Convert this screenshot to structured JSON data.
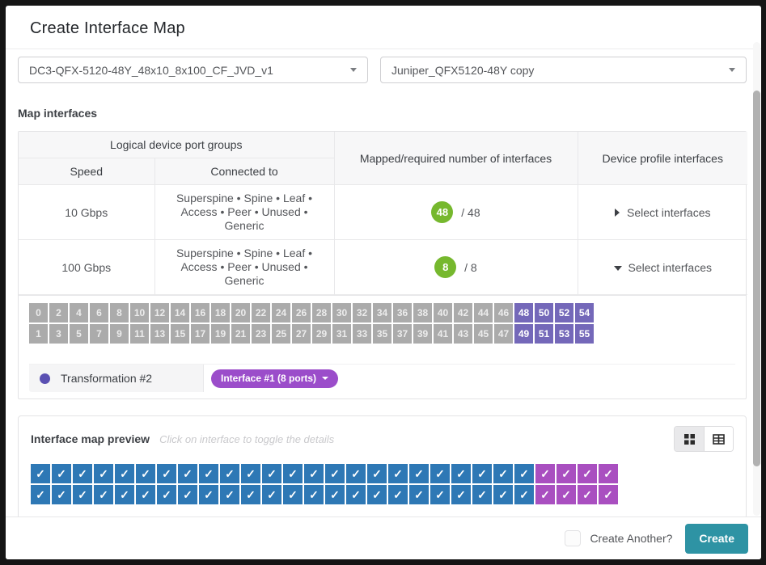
{
  "dialog": {
    "title": "Create Interface Map"
  },
  "selects": {
    "logical_device_value": "DC3-QFX-5120-48Y_48x10_8x100_CF_JVD_v1",
    "device_profile_value": "Juniper_QFX5120-48Y copy"
  },
  "section_label": "Map interfaces",
  "table": {
    "header": {
      "port_groups": "Logical device port groups",
      "speed": "Speed",
      "connected_to": "Connected to",
      "mapped": "Mapped/required number of interfaces",
      "profile_interfaces": "Device profile interfaces"
    },
    "rows": [
      {
        "speed": "10 Gbps",
        "connected_to": "Superspine • Spine • Leaf • Access • Peer • Unused • Generic",
        "mapped_count": "48",
        "required_suffix": "/ 48",
        "select_label": "Select interfaces",
        "expanded": false
      },
      {
        "speed": "100 Gbps",
        "connected_to": "Superspine • Spine • Leaf • Access • Peer • Unused • Generic",
        "mapped_count": "8",
        "required_suffix": "/ 8",
        "select_label": "Select interfaces",
        "expanded": true
      }
    ]
  },
  "port_selector": {
    "rows": [
      [
        0,
        2,
        4,
        6,
        8,
        10,
        12,
        14,
        16,
        18,
        20,
        22,
        24,
        26,
        28,
        30,
        32,
        34,
        36,
        38,
        40,
        42,
        44,
        46,
        48,
        50,
        52,
        54
      ],
      [
        1,
        3,
        5,
        7,
        9,
        11,
        13,
        15,
        17,
        19,
        21,
        23,
        25,
        27,
        29,
        31,
        33,
        35,
        37,
        39,
        41,
        43,
        45,
        47,
        49,
        51,
        53,
        55
      ]
    ],
    "selected_ports": [
      48,
      49,
      50,
      51,
      52,
      53,
      54,
      55
    ],
    "transformation_label": "Transformation #2",
    "interface_button_label": "Interface #1 (8 ports)"
  },
  "preview": {
    "title": "Interface map preview",
    "hint": "Click on interface to toggle the details",
    "columns": 28,
    "rows": 2,
    "purple_columns": 4,
    "check_glyph": "✓"
  },
  "footer": {
    "create_another_label": "Create Another?",
    "create_button_label": "Create"
  },
  "colors": {
    "badge_green": "#76b82e",
    "port_gray": "#ababab",
    "port_selected_purple": "#7468b9",
    "interface_button_purple": "#9b4dca",
    "preview_blue": "#2e78b5",
    "preview_purple": "#a94fc0",
    "create_button_teal": "#2e93a4"
  }
}
